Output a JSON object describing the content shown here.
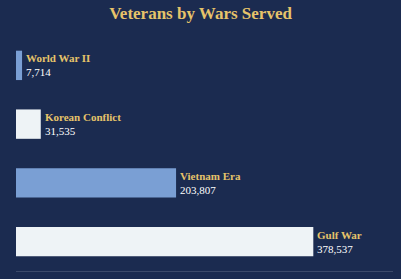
{
  "chart_data": {
    "type": "bar",
    "orientation": "horizontal",
    "title": "Veterans by Wars Served",
    "categories": [
      "World War II",
      "Korean Conflict",
      "Vietnam Era",
      "Gulf War"
    ],
    "values": [
      7714,
      31535,
      203807,
      378537
    ],
    "value_labels": [
      "7,714",
      "31,535",
      "203,807",
      "378,537"
    ],
    "colors": [
      "#7a9fd4",
      "#eef3f6",
      "#7a9fd4",
      "#eef3f6"
    ],
    "xlim": [
      0,
      480000
    ],
    "data_labels": true,
    "tick_labels": false,
    "grid": false
  }
}
